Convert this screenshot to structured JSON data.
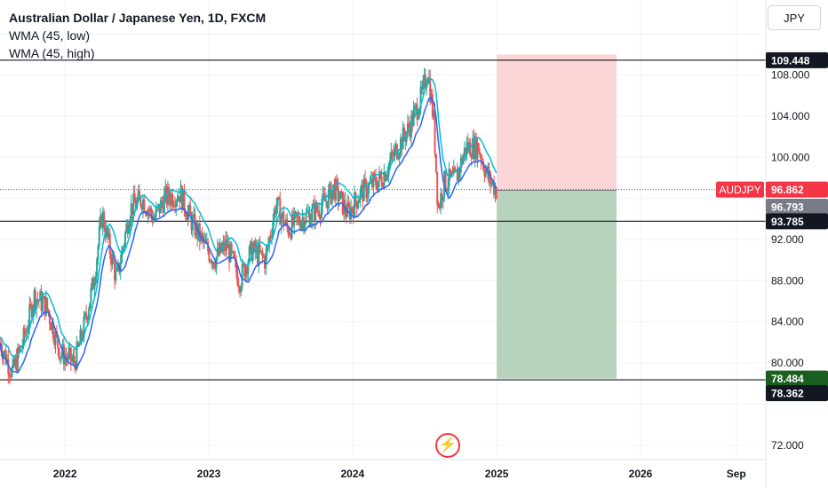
{
  "legend": {
    "title": "Australian Dollar / Japanese Yen, 1D, FXCM",
    "ind1": "WMA (45, low)",
    "ind2": "WMA (45, high)"
  },
  "currency_button": "JPY",
  "colors": {
    "up": "#26a69a",
    "down": "#ef5350",
    "wma_low": "#2962ff",
    "wma_high": "#00bcd4",
    "stop_zone": "#f8c8c8",
    "target_zone": "#b7d3bb",
    "symbol_badge": "#f23645",
    "target_badge": "#1b5e20",
    "price_line": "#9c27b0"
  },
  "chart_data": {
    "type": "candlestick",
    "symbol": "AUDJPY",
    "interval": "1D",
    "ylim": [
      70.6,
      115.3
    ],
    "y_ticks": [
      "72.000",
      "80.000",
      "84.000",
      "88.000",
      "92.000",
      "100.000",
      "104.000",
      "108.000"
    ],
    "x_ticks": [
      "2022",
      "2023",
      "2024",
      "2025",
      "2026",
      "Sep"
    ],
    "x_range": [
      "2021-07-20",
      "2026-11-15"
    ],
    "price_path": [
      [
        "2021-07-20",
        82.0
      ],
      [
        "2021-08-20",
        79.0
      ],
      [
        "2021-09-20",
        82.5
      ],
      [
        "2021-10-15",
        86.5
      ],
      [
        "2021-11-15",
        85.5
      ],
      [
        "2021-12-20",
        81.0
      ],
      [
        "2022-01-25",
        80.0
      ],
      [
        "2022-02-15",
        83.0
      ],
      [
        "2022-03-15",
        88.0
      ],
      [
        "2022-04-05",
        94.5
      ],
      [
        "2022-05-12",
        88.0
      ],
      [
        "2022-06-15",
        95.0
      ],
      [
        "2022-07-15",
        96.0
      ],
      [
        "2022-08-15",
        94.0
      ],
      [
        "2022-09-10",
        96.0
      ],
      [
        "2022-10-20",
        96.5
      ],
      [
        "2022-11-15",
        94.0
      ],
      [
        "2022-12-20",
        91.5
      ],
      [
        "2023-01-15",
        90.0
      ],
      [
        "2023-02-15",
        91.5
      ],
      [
        "2023-03-20",
        88.0
      ],
      [
        "2023-04-20",
        91.0
      ],
      [
        "2023-05-25",
        90.0
      ],
      [
        "2023-06-20",
        95.5
      ],
      [
        "2023-07-20",
        93.0
      ],
      [
        "2023-08-20",
        94.0
      ],
      [
        "2023-09-20",
        94.5
      ],
      [
        "2023-10-20",
        95.5
      ],
      [
        "2023-11-15",
        97.0
      ],
      [
        "2023-12-20",
        94.5
      ],
      [
        "2024-01-20",
        96.5
      ],
      [
        "2024-03-15",
        98.0
      ],
      [
        "2024-04-25",
        101.0
      ],
      [
        "2024-05-25",
        103.0
      ],
      [
        "2024-06-25",
        106.0
      ],
      [
        "2024-07-10",
        108.5
      ],
      [
        "2024-07-25",
        103.5
      ],
      [
        "2024-08-05",
        95.0
      ],
      [
        "2024-08-20",
        97.5
      ],
      [
        "2024-09-20",
        98.0
      ],
      [
        "2024-10-15",
        101.0
      ],
      [
        "2024-11-15",
        101.0
      ],
      [
        "2024-12-10",
        98.0
      ],
      [
        "2024-12-31",
        96.86
      ]
    ],
    "series": [
      {
        "name": "WMA (45, low)"
      },
      {
        "name": "WMA (45, high)"
      }
    ],
    "horizontal_lines": [
      {
        "value": 109.448,
        "label": "109.448"
      },
      {
        "value": 93.785,
        "label": "93.785"
      },
      {
        "value": 78.362,
        "label": "78.362"
      }
    ],
    "last_price": {
      "symbol": "AUDJPY",
      "value": 96.862,
      "label": "96.862"
    },
    "entry_price": {
      "value": 96.793,
      "label": "96.793"
    },
    "target_price": {
      "value": 78.484,
      "label": "78.484"
    },
    "position": {
      "start": "2025-01-01",
      "end": "2025-11-01",
      "stop": 110.0,
      "entry": 96.793,
      "target": 78.484
    }
  }
}
